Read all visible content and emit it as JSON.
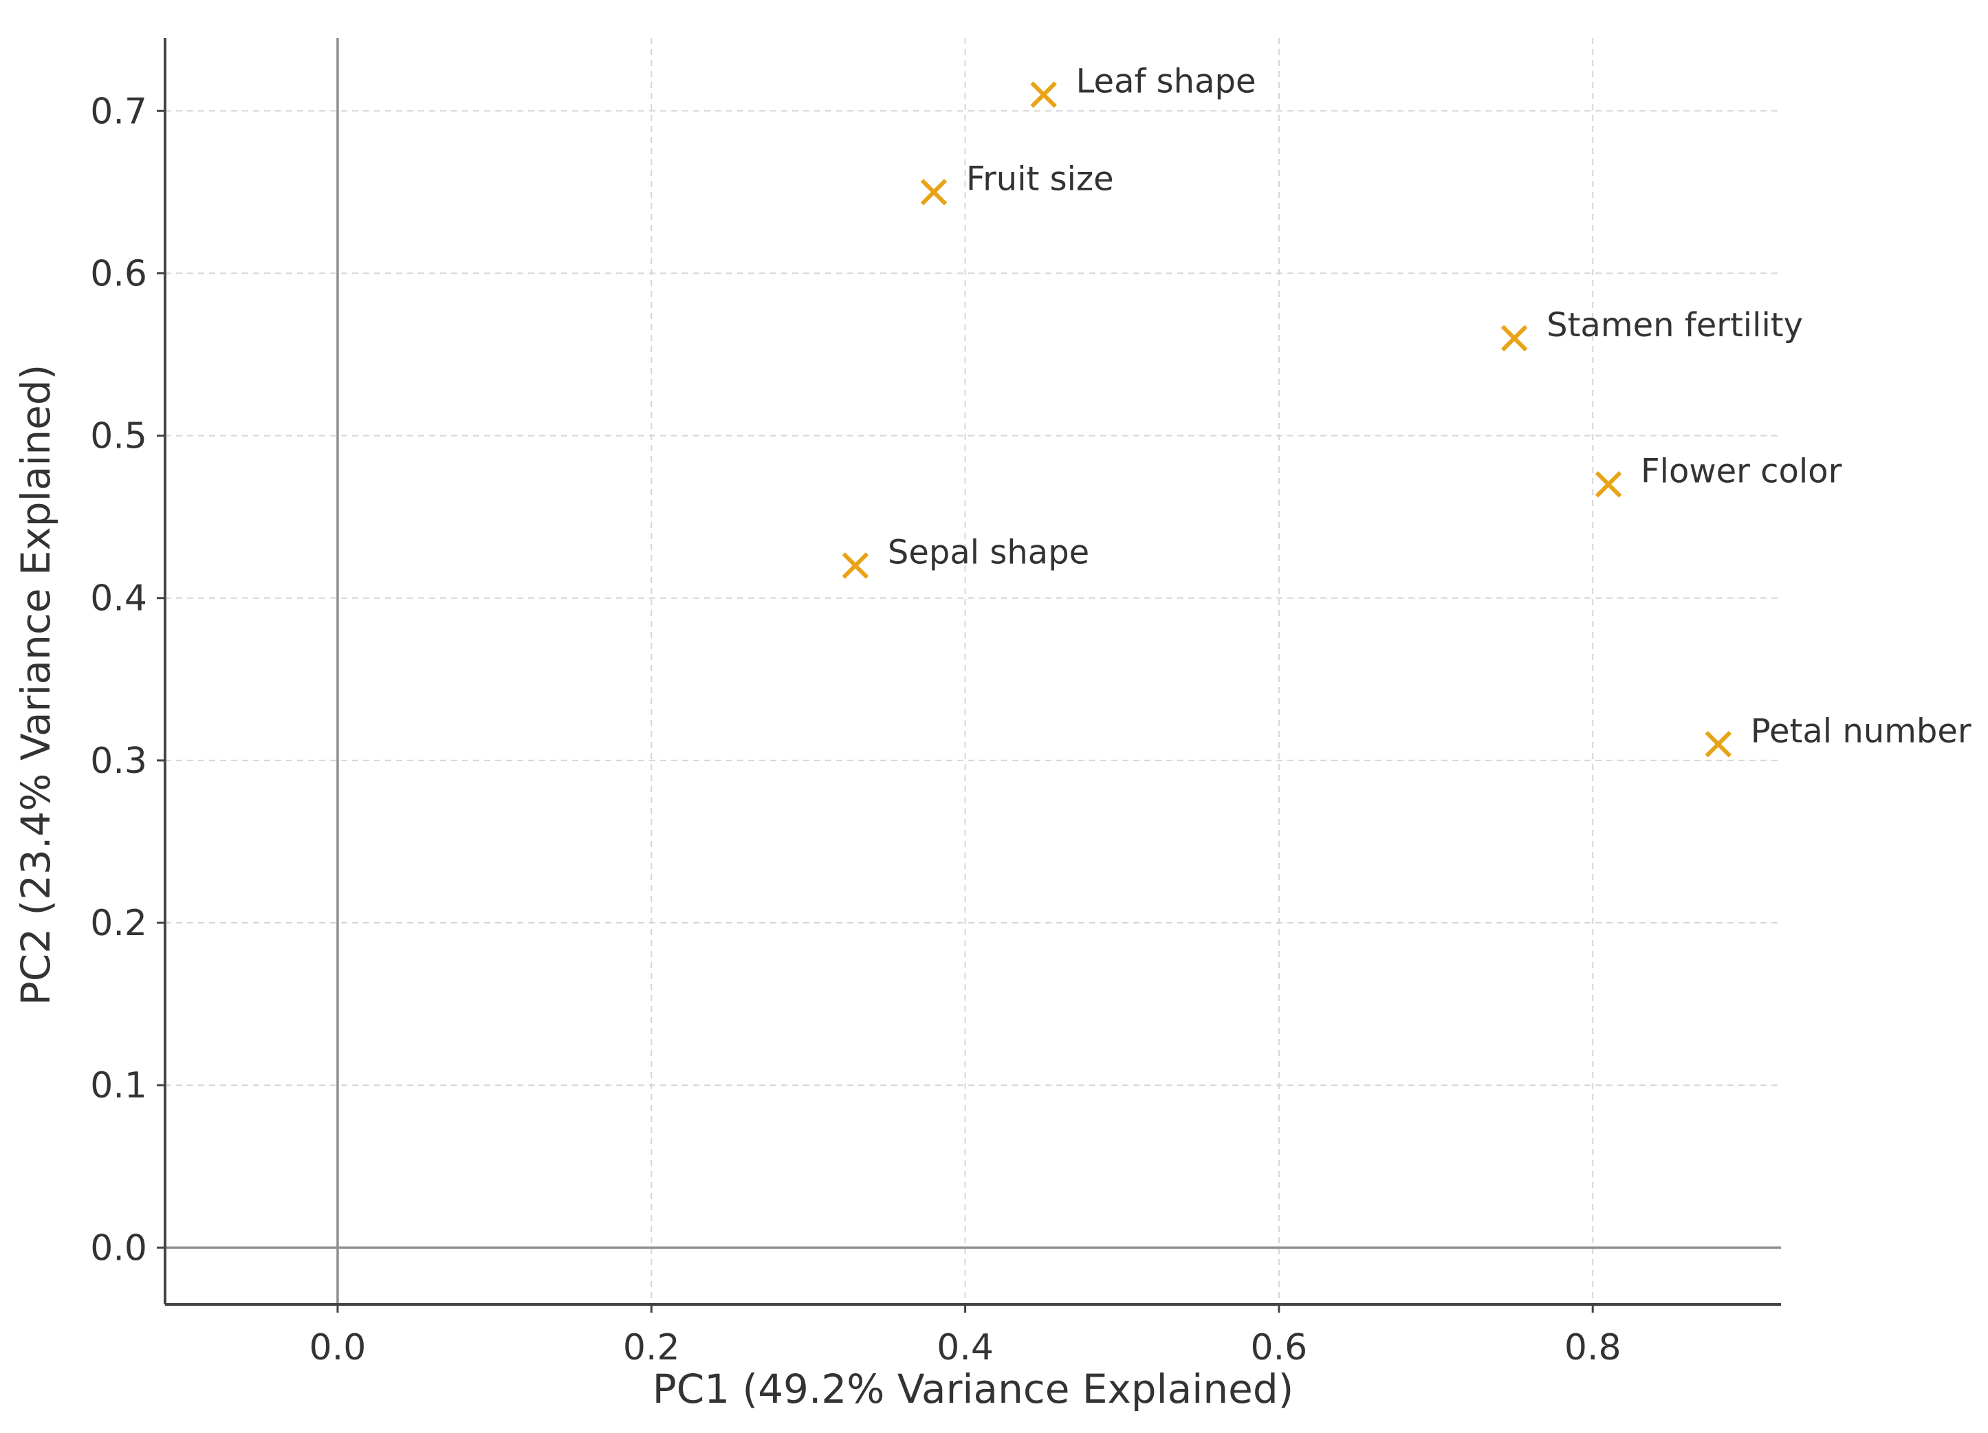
{
  "chart_data": {
    "type": "scatter",
    "title": "",
    "xlabel": "PC1 (49.2% Variance Explained)",
    "ylabel": "PC2 (23.4% Variance Explained)",
    "xlim": [
      -0.11,
      0.92
    ],
    "ylim": [
      -0.035,
      0.745
    ],
    "xticks": [
      0.0,
      0.2,
      0.4,
      0.6,
      0.8
    ],
    "xtick_labels": [
      "0.0",
      "0.2",
      "0.4",
      "0.6",
      "0.8"
    ],
    "yticks": [
      0.0,
      0.1,
      0.2,
      0.3,
      0.4,
      0.5,
      0.6,
      0.7
    ],
    "ytick_labels": [
      "0.0",
      "0.1",
      "0.2",
      "0.3",
      "0.4",
      "0.5",
      "0.6",
      "0.7"
    ],
    "grid": true,
    "reference_lines": {
      "x": 0.0,
      "y": 0.0
    },
    "marker": "x",
    "marker_color": "#E8A317",
    "points": [
      {
        "label": "Leaf shape",
        "x": 0.45,
        "y": 0.71
      },
      {
        "label": "Fruit size",
        "x": 0.38,
        "y": 0.65
      },
      {
        "label": "Stamen fertility",
        "x": 0.75,
        "y": 0.56
      },
      {
        "label": "Flower color",
        "x": 0.81,
        "y": 0.47
      },
      {
        "label": "Sepal shape",
        "x": 0.33,
        "y": 0.42
      },
      {
        "label": "Petal number",
        "x": 0.88,
        "y": 0.31
      }
    ]
  }
}
